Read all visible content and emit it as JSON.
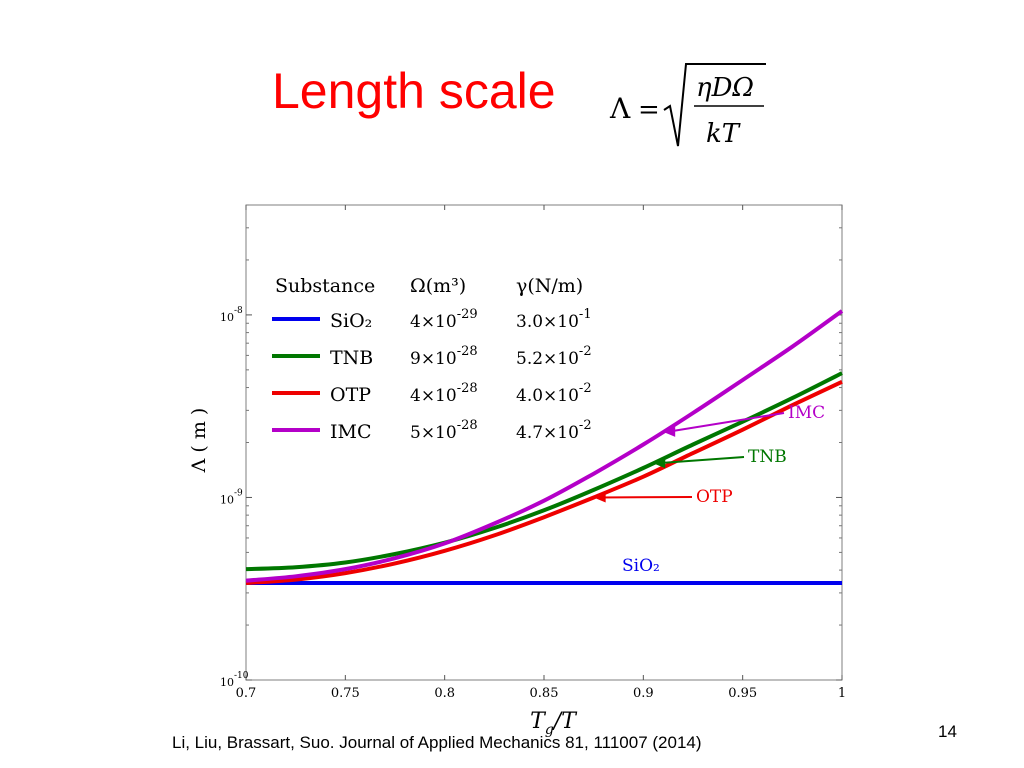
{
  "slide": {
    "title": "Length scale",
    "citation": "Li, Liu, Brassart, Suo.  Journal of Applied Mechanics 81, 111007 (2014)",
    "page_number": "14",
    "formula": {
      "lhs": "Λ",
      "eq": "=",
      "numerator": "ηDΩ",
      "denominator": "kT"
    }
  },
  "chart_data": {
    "type": "line",
    "xlabel": "Tg/T",
    "ylabel": "Λ ( m )",
    "xlim": [
      0.7,
      1.0
    ],
    "ylim": [
      1e-10,
      4e-08
    ],
    "y_scale": "log",
    "x_ticks": [
      "0.7",
      "0.75",
      "0.8",
      "0.85",
      "0.9",
      "0.95",
      "1"
    ],
    "y_ticks": [
      {
        "value": 1e-08,
        "base": "10",
        "exp": "-8"
      },
      {
        "value": 1e-09,
        "base": "10",
        "exp": "-9"
      },
      {
        "value": 1e-10,
        "base": "10",
        "exp": "-10"
      }
    ],
    "x": [
      0.7,
      0.725,
      0.75,
      0.775,
      0.8,
      0.825,
      0.85,
      0.875,
      0.9,
      0.925,
      0.95,
      0.975,
      1.0
    ],
    "series": [
      {
        "name": "SiO2",
        "color": "#0000ee",
        "values": [
          3.4e-10,
          3.4e-10,
          3.4e-10,
          3.4e-10,
          3.4e-10,
          3.4e-10,
          3.4e-10,
          3.4e-10,
          3.4e-10,
          3.4e-10,
          3.4e-10,
          3.4e-10,
          3.4e-10
        ]
      },
      {
        "name": "TNB",
        "color": "#007700",
        "values": [
          4.05e-10,
          4.15e-10,
          4.4e-10,
          4.9e-10,
          5.65e-10,
          6.8e-10,
          8.5e-10,
          1.1e-09,
          1.45e-09,
          1.95e-09,
          2.6e-09,
          3.5e-09,
          4.8e-09
        ]
      },
      {
        "name": "OTP",
        "color": "#ee0000",
        "values": [
          3.4e-10,
          3.55e-10,
          3.85e-10,
          4.35e-10,
          5.1e-10,
          6.2e-10,
          7.8e-10,
          1e-09,
          1.3e-09,
          1.75e-09,
          2.35e-09,
          3.2e-09,
          4.3e-09
        ]
      },
      {
        "name": "IMC",
        "color": "#b400c8",
        "values": [
          3.5e-10,
          3.7e-10,
          4.05e-10,
          4.65e-10,
          5.6e-10,
          7.2e-10,
          9.6e-10,
          1.35e-09,
          1.95e-09,
          2.9e-09,
          4.4e-09,
          6.7e-09,
          1.05e-08
        ]
      }
    ],
    "legend": {
      "headers": {
        "substance": "Substance",
        "omega": "Ω(m³)",
        "gamma": "γ(N/m)"
      },
      "rows": [
        {
          "name": "SiO₂",
          "omega": "4×10",
          "omega_exp": "-29",
          "gamma": "3.0×10",
          "gamma_exp": "-1",
          "color": "#0000ee"
        },
        {
          "name": "TNB",
          "omega": "9×10",
          "omega_exp": "-28",
          "gamma": "5.2×10",
          "gamma_exp": "-2",
          "color": "#007700"
        },
        {
          "name": "OTP",
          "omega": "4×10",
          "omega_exp": "-28",
          "gamma": "4.0×10",
          "gamma_exp": "-2",
          "color": "#ee0000"
        },
        {
          "name": "IMC",
          "omega": "5×10",
          "omega_exp": "-28",
          "gamma": "4.7×10",
          "gamma_exp": "-2",
          "color": "#b400c8"
        }
      ]
    },
    "annotations": [
      {
        "text": "IMC",
        "color": "#b400c8",
        "at_x": 0.91
      },
      {
        "text": "TNB",
        "color": "#007700",
        "at_x": 0.905
      },
      {
        "text": "OTP",
        "color": "#ee0000",
        "at_x": 0.875
      },
      {
        "text": "SiO₂",
        "color": "#0000ee"
      }
    ]
  }
}
